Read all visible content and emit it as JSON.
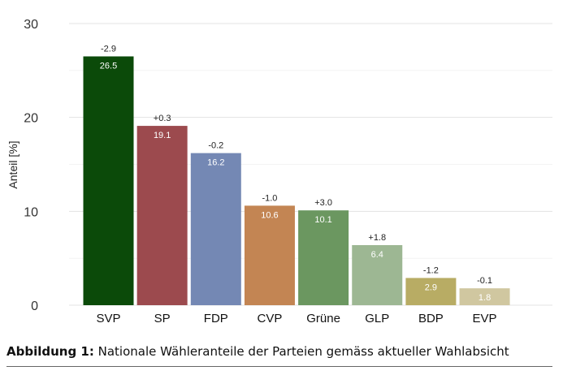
{
  "chart_data": {
    "type": "bar",
    "ylabel": "Anteil [%]",
    "xlabel": "",
    "ylim": [
      0,
      30
    ],
    "yticks": [
      0,
      10,
      20,
      30
    ],
    "grid": true,
    "categories": [
      "SVP",
      "SP",
      "FDP",
      "CVP",
      "Grüne",
      "GLP",
      "BDP",
      "EVP"
    ],
    "values": [
      26.5,
      19.1,
      16.2,
      10.6,
      10.1,
      6.4,
      2.9,
      1.8
    ],
    "value_labels": [
      "26.5",
      "19.1",
      "16.2",
      "10.6",
      "10.1",
      "6.4",
      "2.9",
      "1.8"
    ],
    "changes": [
      "-2.9",
      "+0.3",
      "-0.2",
      "-1.0",
      "+3.0",
      "+1.8",
      "-1.2",
      "-0.1"
    ],
    "colors": [
      "#0b4a09",
      "#9c4a4e",
      "#7488b4",
      "#c38553",
      "#6b9760",
      "#9db793",
      "#b8ac64",
      "#d0c7a0"
    ]
  },
  "caption": {
    "label": "Abbildung 1:",
    "text": "Nationale Wähleranteile der Parteien gemäss aktueller Wahlabsicht"
  }
}
